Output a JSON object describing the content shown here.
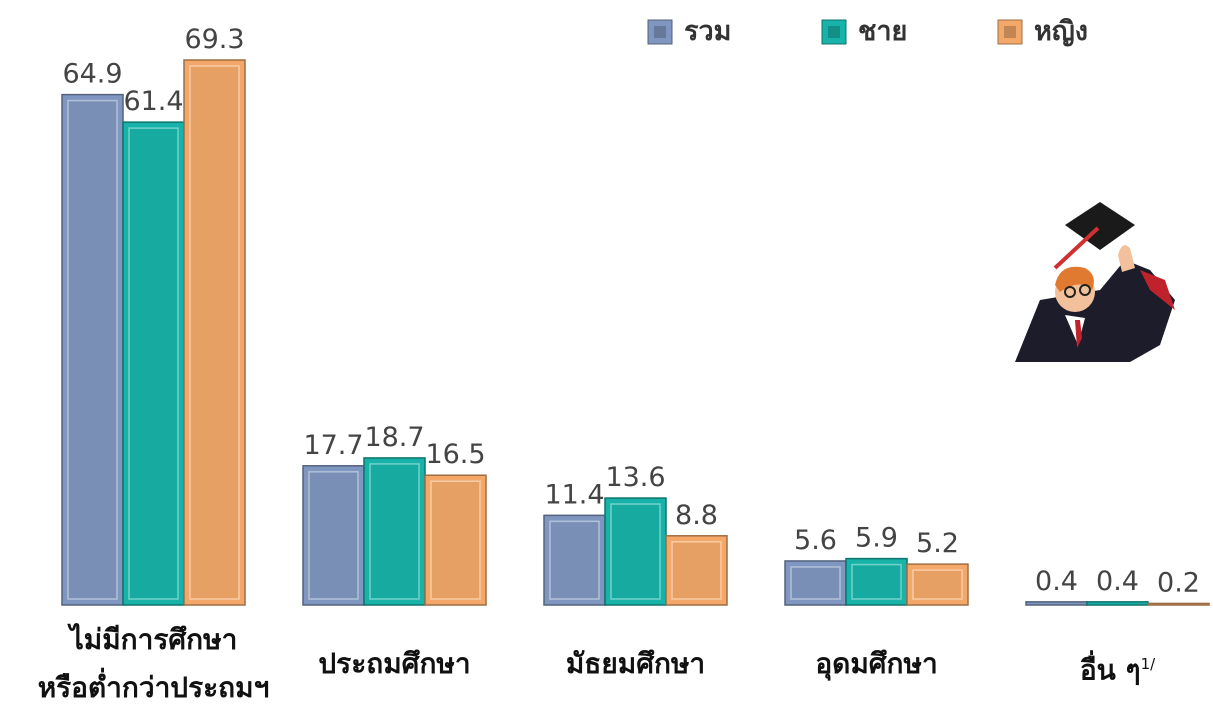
{
  "chart_data": {
    "type": "bar",
    "categories": [
      "ไม่มีการศึกษา\nหรือต่ำกว่าประถมฯ",
      "ประถมศึกษา",
      "มัธยมศึกษา",
      "อุดมศึกษา",
      "อื่น ๆ"
    ],
    "category_notes": [
      null,
      null,
      null,
      null,
      "1/"
    ],
    "series": [
      {
        "name": "รวม",
        "color": "#7f97c0",
        "values": [
          64.9,
          17.7,
          11.4,
          5.6,
          0.4
        ]
      },
      {
        "name": "ชาย",
        "color": "#17b3a8",
        "values": [
          61.4,
          18.7,
          13.6,
          5.9,
          0.4
        ]
      },
      {
        "name": "หญิง",
        "color": "#f3a869",
        "values": [
          69.3,
          16.5,
          8.8,
          5.2,
          0.2
        ]
      }
    ]
  }
}
